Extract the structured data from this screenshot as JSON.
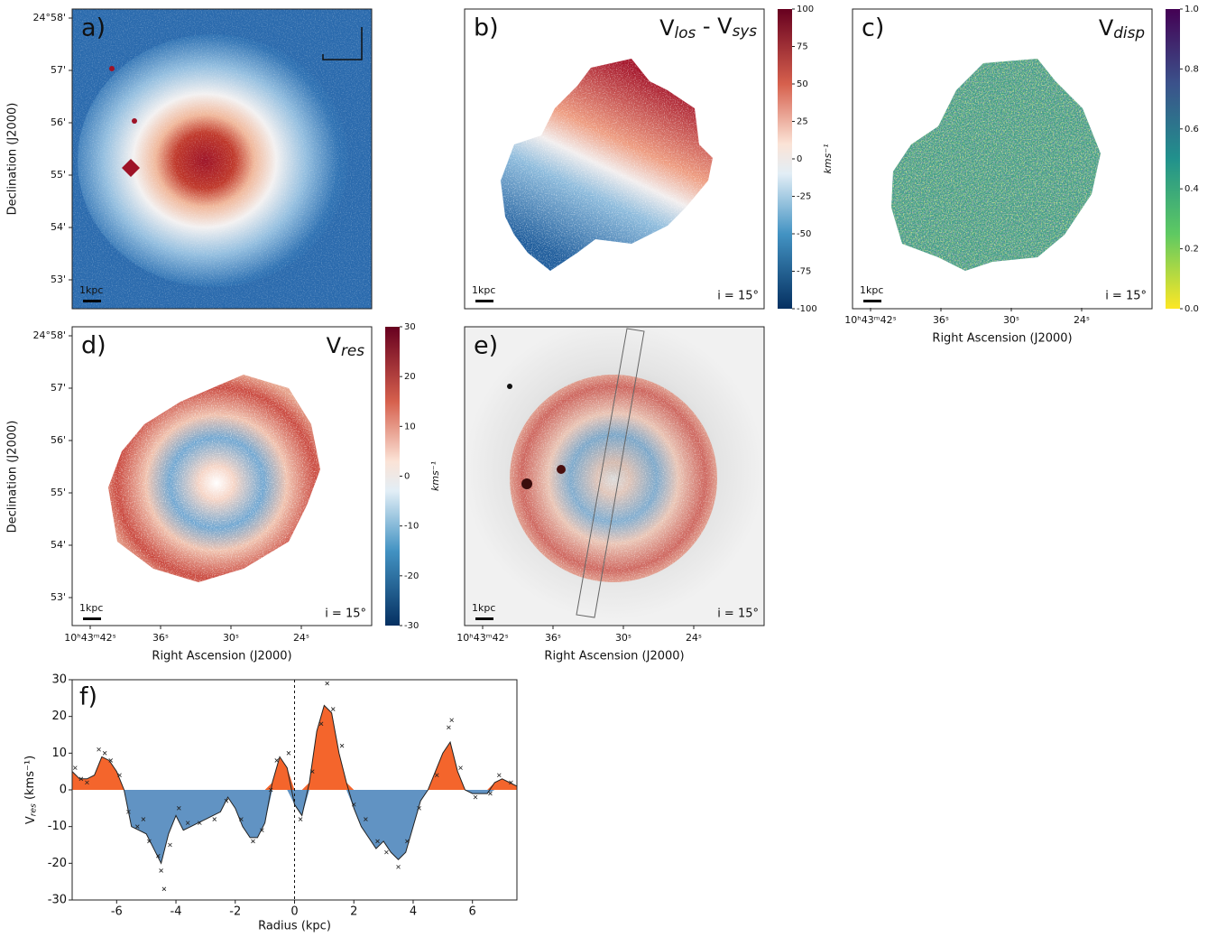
{
  "panels": {
    "a": {
      "label": "a)",
      "scalebar": "1kpc",
      "yticks": [
        "24°58'",
        "57'",
        "56'",
        "55'",
        "54'",
        "53'"
      ],
      "ylabel": "Declination (J2000)"
    },
    "b": {
      "label": "b)",
      "title": [
        "V",
        "los",
        " - V",
        "sys"
      ],
      "scalebar": "1kpc",
      "inclination": "i = 15°",
      "colorbar": {
        "lim": [
          -100,
          100
        ],
        "ticks": [
          100,
          75,
          50,
          25,
          0,
          -25,
          -50,
          -75,
          -100
        ],
        "label": "kms⁻¹"
      }
    },
    "c": {
      "label": "c)",
      "title": [
        "V",
        "disp"
      ],
      "scalebar": "1kpc",
      "inclination": "i = 15°",
      "xticks": [
        "10ʰ43ᵐ42ˢ",
        "36ˢ",
        "30ˢ",
        "24ˢ"
      ],
      "xlabel": "Right Ascension (J2000)",
      "colorbar": {
        "lim": [
          0,
          1
        ],
        "ticks": [
          {
            "value": 1,
            "label": "1.0"
          },
          0.8,
          0.6,
          0.4,
          0.2,
          {
            "value": 0,
            "label": "0.0"
          }
        ]
      }
    },
    "d": {
      "label": "d)",
      "title": [
        "V",
        "res"
      ],
      "scalebar": "1kpc",
      "inclination": "i = 15°",
      "yticks": [
        "24°58'",
        "57'",
        "56'",
        "55'",
        "54'",
        "53'"
      ],
      "ylabel": "Declination (J2000)",
      "xticks": [
        "10ʰ43ᵐ42ˢ",
        "36ˢ",
        "30ˢ",
        "24ˢ"
      ],
      "xlabel": "Right Ascension (J2000)",
      "colorbar": {
        "lim": [
          -30,
          30
        ],
        "ticks": [
          30,
          20,
          10,
          0,
          -10,
          -20,
          -30
        ],
        "label": "kms⁻¹"
      }
    },
    "e": {
      "label": "e)",
      "scalebar": "1kpc",
      "inclination": "i = 15°",
      "xticks": [
        "10ʰ43ᵐ42ˢ",
        "36ˢ",
        "30ˢ",
        "24ˢ"
      ],
      "xlabel": "Right Ascension (J2000)"
    }
  },
  "chart_data": {
    "type": "area",
    "label": "f)",
    "xlabel": "Radius (kpc)",
    "ylabel": [
      "V",
      "res",
      " (kms⁻¹)"
    ],
    "xlim": [
      -7.5,
      7.5
    ],
    "ylim": [
      -30,
      30
    ],
    "xticks": [
      -6,
      -4,
      -2,
      0,
      2,
      4,
      6
    ],
    "yticks": [
      -30,
      -20,
      -10,
      0,
      10,
      20,
      30
    ],
    "vline": 0,
    "positive_color": "#f4652c",
    "negative_color": "#6193c3",
    "x": [
      -7.5,
      -7.25,
      -7,
      -6.75,
      -6.5,
      -6.25,
      -6,
      -5.75,
      -5.5,
      -5.25,
      -5,
      -4.75,
      -4.5,
      -4.25,
      -4,
      -3.75,
      -3.5,
      -3.25,
      -3,
      -2.75,
      -2.5,
      -2.25,
      -2,
      -1.75,
      -1.5,
      -1.25,
      -1,
      -0.75,
      -0.5,
      -0.25,
      0,
      0.25,
      0.5,
      0.75,
      1,
      1.25,
      1.5,
      1.75,
      2,
      2.25,
      2.5,
      2.75,
      3,
      3.25,
      3.5,
      3.75,
      4,
      4.25,
      4.5,
      4.75,
      5,
      5.25,
      5.5,
      5.75,
      6,
      6.25,
      6.5,
      6.75,
      7,
      7.25,
      7.5
    ],
    "values": [
      5,
      3,
      3,
      4,
      9,
      8,
      5,
      0,
      -10,
      -11,
      -12,
      -16,
      -20,
      -12,
      -7,
      -11,
      -10,
      -9,
      -8,
      -7,
      -6,
      -2,
      -5,
      -10,
      -13,
      -13,
      -9,
      2,
      9,
      6,
      -4,
      -7,
      2,
      16,
      23,
      21,
      10,
      2,
      -5,
      -10,
      -13,
      -16,
      -14,
      -17,
      -19,
      -17,
      -10,
      -3,
      0,
      5,
      10,
      13,
      5,
      0,
      -1,
      -1,
      -1,
      2,
      3,
      2,
      1
    ],
    "points": {
      "x": [
        -7.4,
        -7.2,
        -7,
        -6.6,
        -6.4,
        -6.2,
        -5.9,
        -5.6,
        -5.3,
        -5.1,
        -4.9,
        -4.6,
        -4.5,
        -4.4,
        -4.2,
        -3.9,
        -3.6,
        -3.2,
        -2.7,
        -2.3,
        -1.8,
        -1.4,
        -1.1,
        -0.8,
        -0.6,
        -0.2,
        0.2,
        0.6,
        0.9,
        1.1,
        1.3,
        1.6,
        2,
        2.4,
        2.8,
        3.1,
        3.5,
        3.8,
        4.2,
        4.8,
        5.2,
        5.3,
        5.6,
        6.1,
        6.6,
        6.9,
        7.3
      ],
      "y": [
        6,
        3,
        2,
        11,
        10,
        8,
        4,
        -6,
        -10,
        -8,
        -14,
        -18,
        -22,
        -27,
        -15,
        -5,
        -9,
        -9,
        -8,
        -3,
        -8,
        -14,
        -11,
        0,
        8,
        10,
        -8,
        5,
        18,
        29,
        22,
        12,
        -4,
        -8,
        -14,
        -17,
        -21,
        -14,
        -5,
        4,
        17,
        19,
        6,
        -2,
        -1,
        4,
        2
      ]
    }
  }
}
